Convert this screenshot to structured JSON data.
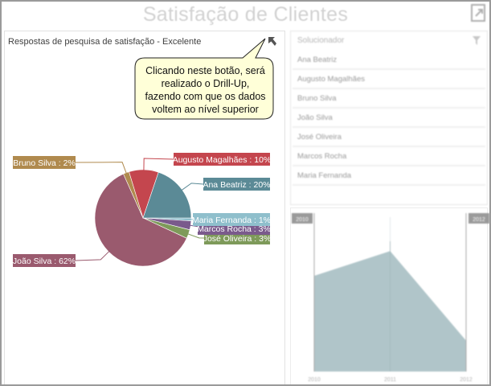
{
  "header": {
    "title": "Satisfação de Clientes",
    "export_icon": "export-icon"
  },
  "pie_panel": {
    "caption": "Respostas de pesquisa de satisfação - Excelente",
    "drill_up_icon": "drill-up-arrow-icon",
    "callout": {
      "lines": [
        "Clicando neste botão, será",
        "realizado o Drill-Up,",
        "fazendo com que os dados",
        "voltem ao nível superior"
      ]
    }
  },
  "selector": {
    "header": "Solucionador",
    "filter_icon": "clear-filter-icon",
    "items": [
      {
        "label": "Ana Beatriz"
      },
      {
        "label": "Augusto Magalhães"
      },
      {
        "label": "Bruno Silva"
      },
      {
        "label": "João Silva"
      },
      {
        "label": "José Oliveira"
      },
      {
        "label": "Marcos Rocha"
      },
      {
        "label": "Maria Fernanda"
      }
    ]
  },
  "range": {
    "start_label": "2010",
    "end_label": "2012"
  },
  "chart_data": [
    {
      "type": "pie",
      "title": "Respostas de pesquisa de satisfação - Excelente",
      "label_format": "{name} : {pct}%",
      "slices": [
        {
          "name": "Maria Fernanda",
          "value": 1,
          "color": "#8fbfcc",
          "label": "Maria Fernanda : 1%"
        },
        {
          "name": "Marcos Rocha",
          "value": 3,
          "color": "#7a5a8c",
          "label": "Marcos Rocha : 3%"
        },
        {
          "name": "José Oliveira",
          "value": 3,
          "color": "#7e9a5a",
          "label": "José Oliveira : 3%"
        },
        {
          "name": "João Silva",
          "value": 62,
          "color": "#9a5a6e",
          "label": "João Silva : 62%"
        },
        {
          "name": "Bruno Silva",
          "value": 2,
          "color": "#b08a4e",
          "label": "Bruno Silva : 2%"
        },
        {
          "name": "Augusto Magalhães",
          "value": 10,
          "color": "#c4464e",
          "label": "Augusto Magalhães : 10%"
        },
        {
          "name": "Ana Beatriz",
          "value": 20,
          "color": "#5b8a96",
          "label": "Ana Beatriz : 20%"
        }
      ]
    },
    {
      "type": "area",
      "title": "",
      "categories": [
        "2010",
        "2011",
        "2012"
      ],
      "values": [
        62,
        78,
        20
      ],
      "color": "#b0c5c9",
      "xlabel": "",
      "ylabel": "",
      "grid": true,
      "range_selector": [
        "2010",
        "2012"
      ]
    }
  ]
}
